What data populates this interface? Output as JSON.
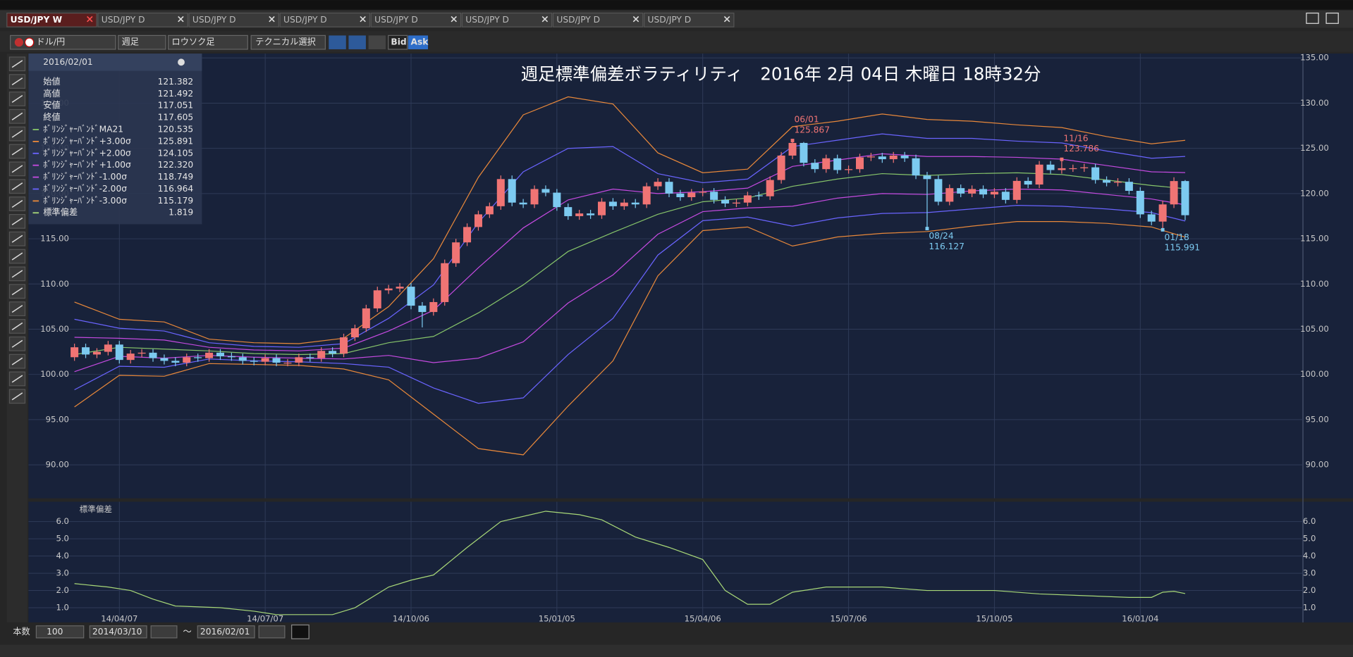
{
  "tabs": [
    "USD/JPY W",
    "USD/JPY D",
    "USD/JPY D",
    "USD/JPY D",
    "USD/JPY D",
    "USD/JPY D",
    "USD/JPY D",
    "USD/JPY D"
  ],
  "toolbar": {
    "pair": "ドル/円",
    "period": "週足",
    "style": "ロウソク足",
    "technical": "テクニカル選択",
    "bid": "Bid",
    "ask": "Ask"
  },
  "info_panel": {
    "date": "2016/02/01",
    "rows": [
      {
        "label": "始値",
        "value": "121.382"
      },
      {
        "label": "高値",
        "value": "121.492"
      },
      {
        "label": "安値",
        "value": "117.051"
      },
      {
        "label": "終値",
        "value": "117.605"
      },
      {
        "label": "ﾎﾞﾘﾝｼﾞｬｰﾊﾞﾝﾄﾞMA21",
        "value": "120.535",
        "color": "#86c46a"
      },
      {
        "label": "ﾎﾞﾘﾝｼﾞｬｰﾊﾞﾝﾄﾞ+3.00σ",
        "value": "125.891",
        "color": "#e8883a"
      },
      {
        "label": "ﾎﾞﾘﾝｼﾞｬｰﾊﾞﾝﾄﾞ+2.00σ",
        "value": "124.105",
        "color": "#6a64ff"
      },
      {
        "label": "ﾎﾞﾘﾝｼﾞｬｰﾊﾞﾝﾄﾞ+1.00σ",
        "value": "122.320",
        "color": "#c44ae0"
      },
      {
        "label": "ﾎﾞﾘﾝｼﾞｬｰﾊﾞﾝﾄﾞ-1.00σ",
        "value": "118.749",
        "color": "#c44ae0"
      },
      {
        "label": "ﾎﾞﾘﾝｼﾞｬｰﾊﾞﾝﾄﾞ-2.00σ",
        "value": "116.964",
        "color": "#6a64ff"
      },
      {
        "label": "ﾎﾞﾘﾝｼﾞｬｰﾊﾞﾝﾄﾞ-3.00σ",
        "value": "115.179",
        "color": "#e8883a"
      },
      {
        "label": "標準偏差",
        "value": "1.819",
        "color": "#a8d878"
      }
    ]
  },
  "chart_data": {
    "type": "candlestick",
    "title": "週足標準偏差ボラティリティ　2016年 2月 04日 木曜日 18時32分",
    "up_color": "#f07474",
    "down_color": "#7ccaf0",
    "xlim": [
      -4.1,
      109.5
    ],
    "ylim": [
      86.3,
      135.48
    ],
    "xticks": [
      {
        "value": 4,
        "label": "14/04/07"
      },
      {
        "value": 17,
        "label": "14/07/07"
      },
      {
        "value": 30,
        "label": "14/10/06"
      },
      {
        "value": 43,
        "label": "15/01/05"
      },
      {
        "value": 56,
        "label": "15/04/06"
      },
      {
        "value": 69,
        "label": "15/07/06"
      },
      {
        "value": 82,
        "label": "15/10/05"
      },
      {
        "value": 95,
        "label": "16/01/04"
      }
    ],
    "yticks": [
      {
        "value": 90,
        "label": "90.00"
      },
      {
        "value": 95,
        "label": "95.00"
      },
      {
        "value": 100,
        "label": "100.00"
      },
      {
        "value": 105,
        "label": "105.00"
      },
      {
        "value": 110,
        "label": "110.00"
      },
      {
        "value": 115,
        "label": "115.00"
      },
      {
        "value": 120,
        "label": "120.00"
      },
      {
        "value": 125,
        "label": "125.00"
      },
      {
        "value": 130,
        "label": "130.00"
      },
      {
        "value": 135,
        "label": "135.00"
      }
    ],
    "grid": true,
    "open": [
      101.9,
      103.0,
      102.2,
      102.5,
      103.3,
      101.6,
      102.3,
      102.4,
      101.8,
      101.5,
      101.3,
      101.9,
      101.8,
      102.4,
      102.0,
      101.9,
      101.5,
      101.4,
      101.8,
      101.3,
      101.3,
      101.9,
      101.8,
      102.6,
      102.3,
      104.1,
      105.1,
      107.3,
      109.3,
      109.5,
      109.7,
      107.6,
      106.9,
      108.0,
      112.3,
      114.6,
      116.3,
      117.7,
      118.6,
      121.6,
      119.0,
      118.8,
      120.5,
      120.1,
      118.5,
      117.5,
      117.8,
      117.6,
      119.1,
      118.6,
      119.0,
      118.8,
      120.8,
      121.3,
      120.0,
      119.6,
      120.1,
      120.2,
      119.3,
      118.9,
      119.0,
      119.8,
      119.7,
      121.5,
      124.2,
      125.6,
      123.4,
      122.7,
      123.9,
      122.6,
      122.7,
      124.0,
      124.1,
      123.8,
      124.2,
      123.9,
      122.0,
      121.6,
      119.1,
      120.6,
      120.0,
      120.5,
      119.9,
      120.2,
      119.3,
      121.4,
      121.0,
      123.2,
      122.6,
      122.8,
      122.8,
      122.9,
      121.5,
      121.2,
      121.3,
      120.3,
      117.7,
      116.9,
      118.8,
      121.382
    ],
    "high": [
      103.4,
      103.4,
      102.9,
      103.7,
      103.7,
      102.7,
      102.8,
      102.8,
      102.2,
      101.9,
      102.3,
      102.3,
      102.8,
      102.8,
      102.4,
      102.3,
      101.9,
      102.2,
      102.2,
      101.7,
      102.3,
      102.3,
      103.0,
      103.0,
      104.5,
      105.5,
      107.7,
      109.7,
      109.9,
      110.1,
      110.1,
      108.0,
      108.4,
      112.7,
      115.0,
      116.7,
      118.1,
      119.0,
      122.0,
      122.0,
      119.4,
      120.9,
      120.9,
      120.5,
      118.9,
      118.2,
      118.2,
      119.5,
      119.5,
      119.4,
      119.4,
      121.2,
      121.7,
      121.7,
      120.4,
      120.5,
      120.6,
      120.6,
      119.7,
      119.4,
      120.2,
      120.2,
      121.9,
      124.6,
      125.867,
      125.7,
      123.8,
      124.3,
      124.3,
      123.1,
      124.4,
      124.5,
      124.5,
      124.6,
      124.6,
      124.3,
      122.4,
      122.0,
      121.0,
      121.0,
      120.9,
      120.9,
      120.6,
      120.6,
      121.8,
      121.8,
      123.6,
      123.6,
      123.786,
      123.2,
      123.3,
      123.3,
      121.9,
      121.7,
      121.7,
      120.7,
      118.1,
      119.2,
      121.8,
      121.492
    ],
    "low": [
      101.5,
      101.8,
      101.8,
      102.1,
      101.2,
      101.2,
      101.9,
      101.4,
      101.1,
      100.9,
      100.9,
      101.4,
      101.4,
      101.6,
      101.5,
      101.1,
      101.0,
      101.0,
      100.9,
      100.9,
      100.9,
      101.4,
      101.4,
      101.9,
      101.9,
      103.7,
      104.7,
      106.9,
      108.9,
      109.1,
      107.2,
      105.2,
      106.5,
      107.6,
      111.9,
      114.2,
      115.9,
      117.3,
      118.2,
      118.6,
      118.4,
      118.4,
      119.7,
      118.1,
      117.1,
      117.1,
      117.2,
      117.2,
      118.2,
      118.2,
      118.4,
      118.4,
      120.4,
      119.6,
      119.2,
      119.2,
      119.7,
      118.9,
      118.5,
      118.5,
      118.6,
      119.3,
      119.3,
      121.1,
      123.8,
      123.0,
      122.3,
      122.3,
      122.2,
      122.2,
      122.3,
      123.6,
      123.4,
      123.4,
      123.5,
      121.6,
      116.127,
      118.7,
      118.7,
      119.6,
      119.6,
      119.5,
      119.5,
      118.9,
      118.9,
      120.6,
      120.6,
      122.2,
      122.2,
      122.4,
      122.4,
      121.1,
      120.8,
      120.8,
      119.9,
      117.3,
      116.5,
      115.991,
      118.4,
      117.051
    ],
    "close": [
      103.0,
      102.2,
      102.5,
      103.3,
      101.6,
      102.3,
      102.4,
      101.8,
      101.5,
      101.3,
      101.9,
      101.8,
      102.4,
      102.0,
      101.9,
      101.5,
      101.4,
      101.8,
      101.3,
      101.3,
      101.9,
      101.8,
      102.6,
      102.3,
      104.1,
      105.1,
      107.3,
      109.3,
      109.5,
      109.7,
      107.6,
      106.9,
      108.0,
      112.3,
      114.6,
      116.3,
      117.7,
      118.6,
      121.6,
      119.0,
      118.8,
      120.5,
      120.1,
      118.5,
      117.5,
      117.8,
      117.6,
      119.1,
      118.6,
      119.0,
      118.8,
      120.8,
      121.3,
      120.0,
      119.6,
      120.1,
      120.2,
      119.3,
      118.9,
      119.0,
      119.8,
      119.7,
      121.5,
      124.2,
      125.6,
      123.4,
      122.7,
      123.9,
      122.6,
      122.7,
      124.0,
      124.1,
      123.8,
      124.2,
      123.9,
      122.0,
      121.6,
      119.1,
      120.6,
      120.0,
      120.5,
      119.9,
      120.2,
      119.3,
      121.4,
      121.0,
      123.2,
      122.6,
      122.8,
      122.8,
      122.9,
      121.5,
      121.2,
      121.3,
      120.3,
      117.7,
      116.9,
      118.8,
      121.382,
      117.605
    ],
    "series": [
      {
        "name": "ﾎﾞﾘﾝｼﾞｬｰﾊﾞﾝﾄﾞ-3.00σ",
        "color": "#e8883a",
        "x": [
          0,
          4,
          8,
          12,
          16,
          20,
          24,
          28,
          32,
          36,
          40,
          44,
          48,
          52,
          56,
          60,
          64,
          68,
          72,
          76,
          80,
          84,
          88,
          92,
          96,
          99
        ],
        "values": [
          96.4,
          99.9,
          99.8,
          101.2,
          101.1,
          101.0,
          100.6,
          99.4,
          95.6,
          91.8,
          91.1,
          96.5,
          101.5,
          110.9,
          115.9,
          116.3,
          114.2,
          115.2,
          115.6,
          115.8,
          116.4,
          116.9,
          116.9,
          116.7,
          116.3,
          115.179
        ]
      },
      {
        "name": "ﾎﾞﾘﾝｼﾞｬｰﾊﾞﾝﾄﾞ-2.00σ",
        "color": "#6a64ff",
        "x": [
          0,
          4,
          8,
          12,
          16,
          20,
          24,
          28,
          32,
          36,
          40,
          44,
          48,
          52,
          56,
          60,
          64,
          68,
          72,
          76,
          80,
          84,
          88,
          92,
          96,
          99
        ],
        "values": [
          98.3,
          100.9,
          100.8,
          101.7,
          101.5,
          101.4,
          101.2,
          100.8,
          98.5,
          96.8,
          97.4,
          102.2,
          106.2,
          113.2,
          117.0,
          117.4,
          116.4,
          117.3,
          117.8,
          117.9,
          118.3,
          118.7,
          118.6,
          118.3,
          117.9,
          116.964
        ]
      },
      {
        "name": "ﾎﾞﾘﾝｼﾞｬｰﾊﾞﾝﾄﾞ-1.00σ",
        "color": "#c44ae0",
        "x": [
          0,
          4,
          8,
          12,
          16,
          20,
          24,
          28,
          32,
          36,
          40,
          44,
          48,
          52,
          56,
          60,
          64,
          68,
          72,
          76,
          80,
          84,
          88,
          92,
          96,
          99
        ],
        "values": [
          100.3,
          102.0,
          101.8,
          102.1,
          101.9,
          101.8,
          101.7,
          102.1,
          101.3,
          101.8,
          103.6,
          107.9,
          111.0,
          115.5,
          118.0,
          118.4,
          118.6,
          119.5,
          120.0,
          119.9,
          120.3,
          120.5,
          120.4,
          119.9,
          119.4,
          118.749
        ]
      },
      {
        "name": "ﾎﾞﾘﾝｼﾞｬｰﾊﾞﾝﾄﾞMA21",
        "color": "#86c46a",
        "x": [
          0,
          4,
          8,
          12,
          16,
          20,
          24,
          28,
          32,
          36,
          40,
          44,
          48,
          52,
          56,
          60,
          64,
          68,
          72,
          76,
          80,
          84,
          88,
          92,
          96,
          99
        ],
        "values": [
          102.2,
          103.0,
          102.8,
          102.6,
          102.3,
          102.2,
          102.3,
          103.5,
          104.2,
          106.8,
          109.9,
          113.6,
          115.7,
          117.7,
          119.1,
          119.5,
          120.8,
          121.6,
          122.2,
          122.0,
          122.2,
          122.3,
          122.1,
          121.5,
          120.9,
          120.535
        ]
      },
      {
        "name": "ﾎﾞﾘﾝｼﾞｬｰﾊﾞﾝﾄﾞ+1.00σ",
        "color": "#c44ae0",
        "x": [
          0,
          4,
          8,
          12,
          16,
          20,
          24,
          28,
          32,
          36,
          40,
          44,
          48,
          52,
          56,
          60,
          64,
          68,
          72,
          76,
          80,
          84,
          88,
          92,
          96,
          99
        ],
        "values": [
          104.1,
          104.0,
          103.8,
          103.0,
          102.7,
          102.6,
          102.9,
          104.8,
          107.1,
          111.8,
          116.2,
          119.3,
          120.5,
          120.0,
          120.2,
          120.6,
          123.0,
          123.7,
          124.4,
          124.1,
          124.1,
          124.0,
          123.8,
          123.1,
          122.4,
          122.32
        ]
      },
      {
        "name": "ﾎﾞﾘﾝｼﾞｬｰﾊﾞﾝﾄﾞ+2.00σ",
        "color": "#6a64ff",
        "x": [
          0,
          4,
          8,
          12,
          16,
          20,
          24,
          28,
          32,
          36,
          40,
          44,
          48,
          52,
          56,
          60,
          64,
          68,
          72,
          76,
          80,
          84,
          88,
          92,
          96,
          99
        ],
        "values": [
          106.1,
          105.1,
          104.8,
          103.5,
          103.1,
          103.0,
          103.4,
          106.2,
          109.9,
          116.8,
          122.4,
          125.0,
          125.2,
          122.2,
          121.2,
          121.6,
          125.2,
          125.9,
          126.6,
          126.1,
          126.1,
          125.8,
          125.6,
          124.7,
          123.9,
          124.105
        ]
      },
      {
        "name": "ﾎﾞﾘﾝｼﾞｬｰﾊﾞﾝﾄﾞ+3.00σ",
        "color": "#e8883a",
        "x": [
          0,
          4,
          8,
          12,
          16,
          20,
          24,
          28,
          32,
          36,
          40,
          44,
          48,
          52,
          56,
          60,
          64,
          68,
          72,
          76,
          80,
          84,
          88,
          92,
          96,
          99
        ],
        "values": [
          108.0,
          106.1,
          105.8,
          103.9,
          103.5,
          103.4,
          104.0,
          107.5,
          112.8,
          121.8,
          128.7,
          130.7,
          129.9,
          124.5,
          122.3,
          122.7,
          127.4,
          128.0,
          128.8,
          128.2,
          128.0,
          127.6,
          127.3,
          126.3,
          125.5,
          125.891
        ]
      }
    ],
    "annotations": [
      {
        "text": "06/01",
        "x": 64,
        "y": 125.867,
        "color": "#f07474"
      },
      {
        "text": "08/24",
        "x": 76,
        "y": 116.127,
        "color": "#7ccaf0"
      },
      {
        "text": "11/16",
        "x": 88,
        "y": 123.786,
        "color": "#f07474"
      },
      {
        "text": "01/18",
        "x": 97,
        "y": 115.991,
        "color": "#7ccaf0"
      }
    ],
    "sub": {
      "ylim": [
        0.15,
        7.15
      ],
      "yticks": [
        {
          "value": 1,
          "label": "1.0"
        },
        {
          "value": 2,
          "label": "2.0"
        },
        {
          "value": 3,
          "label": "3.0"
        },
        {
          "value": 4,
          "label": "4.0"
        },
        {
          "value": 5,
          "label": "5.0"
        },
        {
          "value": 6,
          "label": "6.0"
        }
      ],
      "series": {
        "name": "標準偏差",
        "color": "#a8d878",
        "x": [
          0,
          3,
          5,
          7,
          9,
          13,
          16,
          18,
          23,
          25,
          28,
          30,
          32,
          35,
          38,
          42,
          45,
          47,
          50,
          53,
          56,
          58,
          60,
          62,
          64,
          67,
          72,
          76,
          82,
          86,
          90,
          94,
          96,
          97,
          98,
          99
        ],
        "values": [
          2.4,
          2.2,
          2.0,
          1.5,
          1.1,
          1.0,
          0.8,
          0.6,
          0.6,
          1.0,
          2.2,
          2.6,
          2.9,
          4.5,
          6.0,
          6.6,
          6.4,
          6.1,
          5.1,
          4.5,
          3.8,
          2.0,
          1.2,
          1.2,
          1.9,
          2.2,
          2.2,
          2.0,
          2.0,
          1.8,
          1.7,
          1.6,
          1.6,
          1.9,
          1.95,
          1.819
        ]
      }
    }
  },
  "footer": {
    "count_label": "本数",
    "count": "100",
    "from": "2014/03/10",
    "sep": "～",
    "to": "2016/02/01"
  }
}
